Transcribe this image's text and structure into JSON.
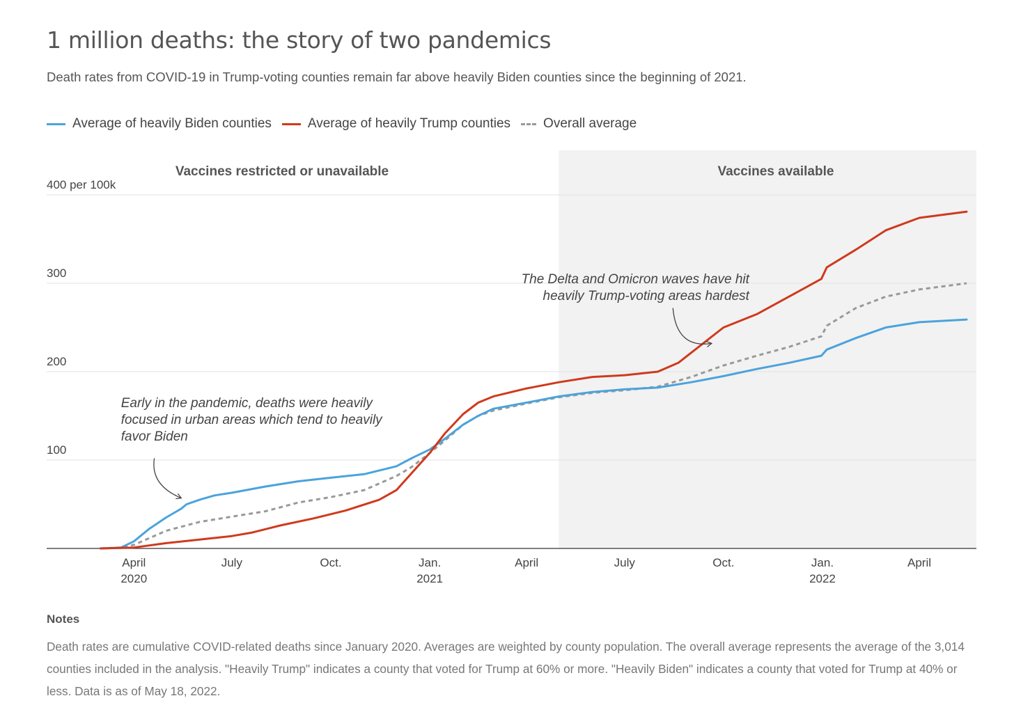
{
  "title": "1 million deaths: the story of two pandemics",
  "subtitle": "Death rates from COVID-19 in Trump-voting counties remain far above heavily Biden counties since the beginning of 2021.",
  "colors": {
    "biden": "#4aa3dc",
    "trump": "#d0391c",
    "overall": "#999999",
    "shade": "#f2f2f2"
  },
  "notes": {
    "heading": "Notes",
    "text": "Death rates are cumulative COVID-related deaths since January 2020. Averages are weighted by county population. The overall average represents the average of the 3,014 counties included in the analysis. \"Heavily Trump\" indicates a county that voted for Trump at 60% or more. \"Heavily Biden\" indicates a county that voted for Trump at 40% or less. Data is as of May 18, 2022."
  },
  "chart_data": {
    "type": "line",
    "legend_position": "top-left",
    "grid": true,
    "ylim": [
      0,
      400
    ],
    "yticks": [
      {
        "value": 100,
        "label": "100"
      },
      {
        "value": 200,
        "label": "200"
      },
      {
        "value": 300,
        "label": "300"
      },
      {
        "value": 400,
        "label": "400 per 100k"
      }
    ],
    "xlim": [
      "2020-02-15",
      "2022-05-31"
    ],
    "xticks": [
      {
        "date": "2020-04-01",
        "label": "April",
        "year": "2020"
      },
      {
        "date": "2020-07-01",
        "label": "July",
        "year": ""
      },
      {
        "date": "2020-10-01",
        "label": "Oct.",
        "year": ""
      },
      {
        "date": "2021-01-01",
        "label": "Jan.",
        "year": "2021"
      },
      {
        "date": "2021-04-01",
        "label": "April",
        "year": ""
      },
      {
        "date": "2021-07-01",
        "label": "July",
        "year": ""
      },
      {
        "date": "2021-10-01",
        "label": "Oct.",
        "year": ""
      },
      {
        "date": "2022-01-01",
        "label": "Jan.",
        "year": "2022"
      },
      {
        "date": "2022-04-01",
        "label": "April",
        "year": ""
      }
    ],
    "regions": [
      {
        "label": "Vaccines restricted or unavailable",
        "start": "2020-02-15",
        "end": "2021-05-01",
        "shaded": false
      },
      {
        "label": "Vaccines available",
        "start": "2021-05-01",
        "end": "2022-05-31",
        "shaded": true
      }
    ],
    "annotations": [
      {
        "lines": [
          "Early in the pandemic, deaths were heavily",
          "focused in urban areas which tend to heavily",
          "favor Biden"
        ],
        "align": "left",
        "anchor": [
          "2020-03-20",
          160
        ],
        "arrow_from": [
          "2020-04-20",
          102
        ],
        "arrow_to": [
          "2020-05-15",
          57
        ]
      },
      {
        "lines": [
          "The Delta and Omicron waves have hit",
          "heavily Trump-voting areas hardest"
        ],
        "align": "right",
        "anchor": [
          "2021-10-25",
          300
        ],
        "arrow_from": [
          "2021-08-15",
          272
        ],
        "arrow_to": [
          "2021-09-20",
          232
        ]
      }
    ],
    "series": [
      {
        "name": "Average of heavily Biden counties",
        "key": "biden",
        "dashed": false,
        "points": [
          [
            "2020-03-01",
            0
          ],
          [
            "2020-03-20",
            1
          ],
          [
            "2020-04-01",
            8
          ],
          [
            "2020-04-15",
            22
          ],
          [
            "2020-05-01",
            35
          ],
          [
            "2020-05-15",
            45
          ],
          [
            "2020-05-20",
            50
          ],
          [
            "2020-06-01",
            55
          ],
          [
            "2020-06-15",
            60
          ],
          [
            "2020-07-01",
            63
          ],
          [
            "2020-08-01",
            70
          ],
          [
            "2020-09-01",
            76
          ],
          [
            "2020-10-01",
            80
          ],
          [
            "2020-11-01",
            84
          ],
          [
            "2020-12-01",
            93
          ],
          [
            "2020-12-15",
            102
          ],
          [
            "2021-01-01",
            112
          ],
          [
            "2021-01-15",
            124
          ],
          [
            "2021-02-01",
            140
          ],
          [
            "2021-02-15",
            150
          ],
          [
            "2021-03-01",
            158
          ],
          [
            "2021-04-01",
            165
          ],
          [
            "2021-05-01",
            172
          ],
          [
            "2021-06-01",
            177
          ],
          [
            "2021-07-01",
            180
          ],
          [
            "2021-08-01",
            182
          ],
          [
            "2021-09-01",
            188
          ],
          [
            "2021-10-01",
            195
          ],
          [
            "2021-11-01",
            203
          ],
          [
            "2021-12-01",
            210
          ],
          [
            "2021-12-31",
            218
          ],
          [
            "2022-01-05",
            225
          ],
          [
            "2022-02-01",
            238
          ],
          [
            "2022-03-01",
            250
          ],
          [
            "2022-04-01",
            256
          ],
          [
            "2022-05-15",
            259
          ]
        ]
      },
      {
        "name": "Average of heavily Trump counties",
        "key": "trump",
        "dashed": false,
        "points": [
          [
            "2020-03-01",
            0
          ],
          [
            "2020-04-01",
            1
          ],
          [
            "2020-05-01",
            6
          ],
          [
            "2020-06-01",
            10
          ],
          [
            "2020-07-01",
            14
          ],
          [
            "2020-07-20",
            18
          ],
          [
            "2020-08-15",
            26
          ],
          [
            "2020-09-15",
            34
          ],
          [
            "2020-10-15",
            43
          ],
          [
            "2020-11-15",
            55
          ],
          [
            "2020-12-01",
            66
          ],
          [
            "2020-12-15",
            85
          ],
          [
            "2021-01-01",
            108
          ],
          [
            "2021-01-15",
            130
          ],
          [
            "2021-02-01",
            152
          ],
          [
            "2021-02-15",
            165
          ],
          [
            "2021-03-01",
            172
          ],
          [
            "2021-04-01",
            181
          ],
          [
            "2021-05-01",
            188
          ],
          [
            "2021-06-01",
            194
          ],
          [
            "2021-07-01",
            196
          ],
          [
            "2021-08-01",
            200
          ],
          [
            "2021-08-20",
            210
          ],
          [
            "2021-09-10",
            230
          ],
          [
            "2021-10-01",
            250
          ],
          [
            "2021-11-01",
            265
          ],
          [
            "2021-12-01",
            285
          ],
          [
            "2021-12-31",
            305
          ],
          [
            "2022-01-05",
            318
          ],
          [
            "2022-02-01",
            338
          ],
          [
            "2022-03-01",
            360
          ],
          [
            "2022-04-01",
            374
          ],
          [
            "2022-05-15",
            381
          ]
        ]
      },
      {
        "name": "Overall average",
        "key": "overall",
        "dashed": true,
        "points": [
          [
            "2020-03-01",
            0
          ],
          [
            "2020-03-20",
            1
          ],
          [
            "2020-04-01",
            4
          ],
          [
            "2020-05-01",
            20
          ],
          [
            "2020-06-01",
            30
          ],
          [
            "2020-07-01",
            36
          ],
          [
            "2020-08-01",
            42
          ],
          [
            "2020-09-01",
            52
          ],
          [
            "2020-10-01",
            58
          ],
          [
            "2020-11-01",
            66
          ],
          [
            "2020-12-01",
            82
          ],
          [
            "2020-12-15",
            92
          ],
          [
            "2021-01-01",
            108
          ],
          [
            "2021-01-15",
            122
          ],
          [
            "2021-02-01",
            140
          ],
          [
            "2021-02-15",
            150
          ],
          [
            "2021-03-01",
            156
          ],
          [
            "2021-04-01",
            164
          ],
          [
            "2021-05-01",
            171
          ],
          [
            "2021-06-01",
            176
          ],
          [
            "2021-07-01",
            179
          ],
          [
            "2021-08-01",
            183
          ],
          [
            "2021-09-01",
            194
          ],
          [
            "2021-10-01",
            207
          ],
          [
            "2021-11-01",
            218
          ],
          [
            "2021-12-01",
            228
          ],
          [
            "2021-12-31",
            240
          ],
          [
            "2022-01-05",
            252
          ],
          [
            "2022-02-01",
            272
          ],
          [
            "2022-03-01",
            285
          ],
          [
            "2022-04-01",
            293
          ],
          [
            "2022-05-15",
            300
          ]
        ]
      }
    ]
  }
}
